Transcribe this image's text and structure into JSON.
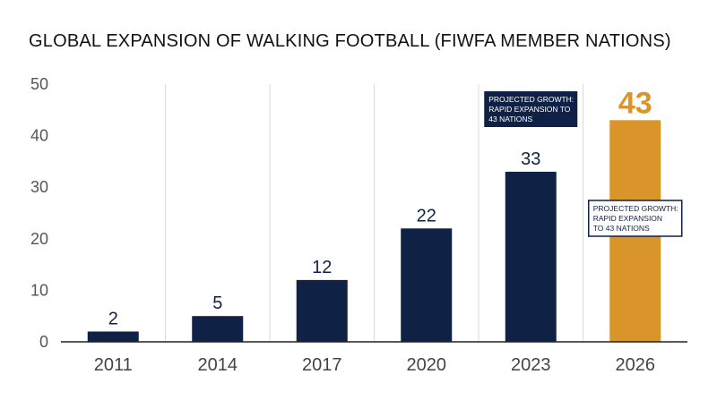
{
  "chart_data": {
    "type": "bar",
    "title": "GLOBAL EXPANSION OF WALKING FOOTBALL (FIWFA MEMBER NATIONS)",
    "xlabel": "",
    "ylabel": "",
    "categories": [
      "2011",
      "2014",
      "2017",
      "2020",
      "2023",
      "2026"
    ],
    "values": [
      2,
      5,
      12,
      22,
      33,
      43
    ],
    "ylim": [
      0,
      50
    ],
    "yticks": [
      0,
      10,
      20,
      30,
      40,
      50
    ],
    "grid": "vertical lines between categories",
    "highlighted_category": "2026",
    "annotations": [
      {
        "near": "2023",
        "style": "dark",
        "lines": [
          "PROJECTED GROWTH:",
          "RAPID EXPANSION TO",
          "43 NATIONS"
        ]
      },
      {
        "near": "2026",
        "style": "light",
        "lines": [
          "PROJECTED GROWTH:",
          "RAPID EXPANSION",
          "TO 43 NATIONS"
        ]
      }
    ]
  },
  "colors": {
    "bar": "#0f2245",
    "highlight": "#d9952a",
    "grid": "#d9d9d9",
    "axis": "#222222",
    "label": "#0f2245"
  }
}
